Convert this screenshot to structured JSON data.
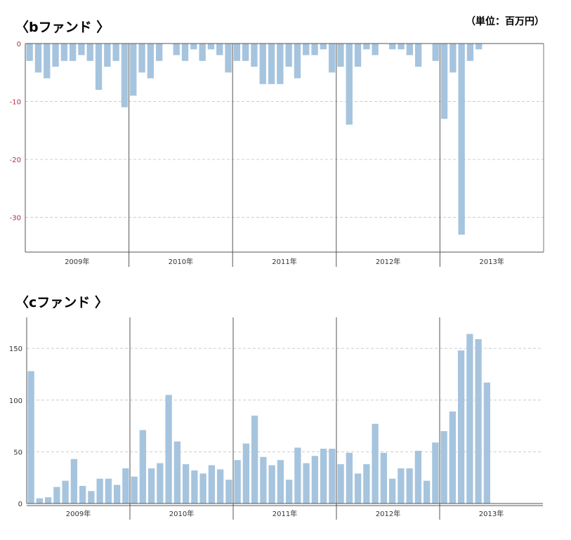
{
  "unit_label": "（単位：百万円）",
  "chart_data": [
    {
      "type": "bar",
      "title": "〈bファンド 〉",
      "xlabel": "",
      "ylabel": "",
      "ylim": [
        -36,
        0
      ],
      "yticks": [
        0,
        -10,
        -20,
        -30
      ],
      "tick_color": "#b03040",
      "bar_color": "#a6c4de",
      "grid": true,
      "years": [
        "2009年",
        "2010年",
        "2011年",
        "2012年",
        "2013年"
      ],
      "values": [
        [
          -3,
          -5,
          -6,
          -4,
          -3,
          -3,
          -2,
          -3,
          -8,
          -4,
          -3,
          -11
        ],
        [
          -9,
          -5,
          -6,
          -3,
          0,
          -2,
          -3,
          -1,
          -3,
          -1,
          -2,
          -5
        ],
        [
          -3,
          -3,
          -4,
          -7,
          -7,
          -7,
          -4,
          -6,
          -2,
          -2,
          -1,
          -5
        ],
        [
          -4,
          -14,
          -4,
          -1,
          -2,
          0,
          -1,
          -1,
          -2,
          -4,
          0,
          -3
        ],
        [
          -13,
          -5,
          -33,
          -3,
          -1
        ]
      ]
    },
    {
      "type": "bar",
      "title": "〈cファンド 〉",
      "xlabel": "",
      "ylabel": "",
      "ylim": [
        0,
        180
      ],
      "yticks": [
        0,
        50,
        100,
        150
      ],
      "tick_color": "#333333",
      "bar_color": "#a6c4de",
      "grid": true,
      "years": [
        "2009年",
        "2010年",
        "2011年",
        "2012年",
        "2013年"
      ],
      "values": [
        [
          128,
          5,
          6,
          16,
          22,
          43,
          17,
          12,
          24,
          24,
          18,
          34
        ],
        [
          26,
          71,
          34,
          39,
          105,
          60,
          38,
          32,
          29,
          37,
          33,
          23
        ],
        [
          42,
          58,
          85,
          45,
          37,
          42,
          23,
          54,
          39,
          46,
          53,
          53
        ],
        [
          38,
          49,
          29,
          38,
          77,
          49,
          24,
          34,
          34,
          51,
          22,
          59
        ],
        [
          70,
          89,
          148,
          164,
          159,
          117
        ]
      ]
    }
  ]
}
